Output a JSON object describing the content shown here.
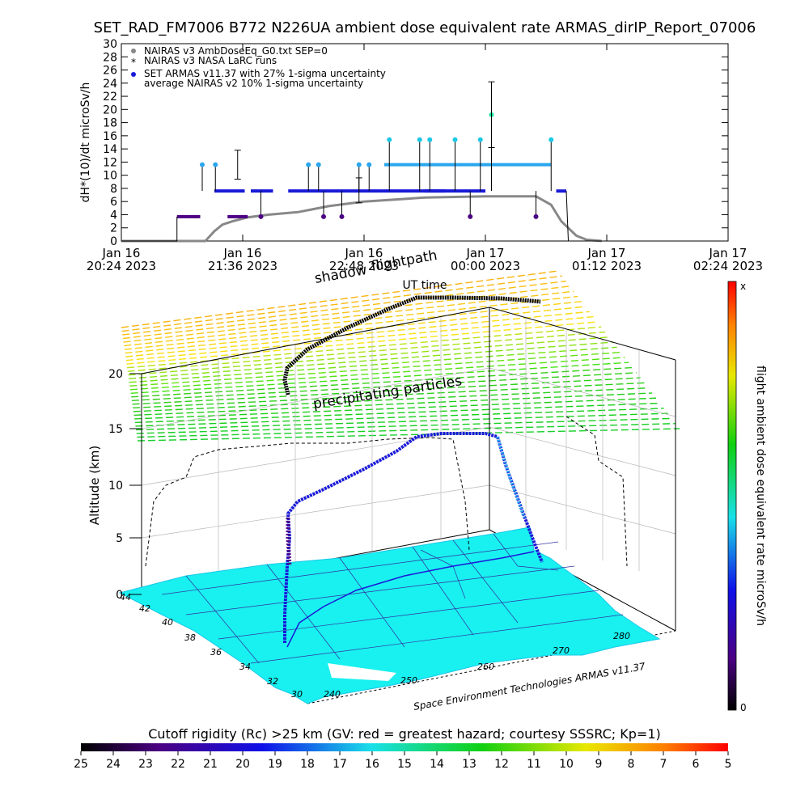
{
  "title": "SET_RAD_FM7006  B772 N226UA ambient dose equivalent rate ARMAS_dirIP_Report_07006",
  "colors": {
    "nairas_v3": "#888888",
    "armas_blue": "#1a1ad8",
    "armas_cyan": "#19c8e6",
    "armas_light": "#2aa6ee",
    "armas_indigo": "#4b0082",
    "map_fill": "#19f0f0",
    "frame": "#000000"
  },
  "chart_data": [
    {
      "type": "line",
      "ylabel": "dH*(10)/dt microSv/h",
      "ylim": [
        0,
        30
      ],
      "yticks": [
        "0",
        "2",
        "4",
        "6",
        "8",
        "10",
        "12",
        "14",
        "16",
        "18",
        "20",
        "22",
        "24",
        "26",
        "28",
        "30"
      ],
      "xticks": [
        {
          "l1": "Jan 16",
          "l2": "20:24 2023"
        },
        {
          "l1": "Jan 16",
          "l2": "21:36 2023"
        },
        {
          "l1": "Jan 16",
          "l2": "22:48 2023"
        },
        {
          "l1": "Jan 17",
          "l2": "00:00 2023"
        },
        {
          "l1": "Jan 17",
          "l2": "01:12 2023"
        },
        {
          "l1": "Jan 17",
          "l2": "02:24 2023"
        }
      ],
      "xlabel": "UT time",
      "legend_position": "top-left",
      "legend": [
        "NAIRAS v3 AmbDoseEq_G0.txt SEP=0",
        "NAIRAS v3 NASA LaRC runs",
        "SET ARMAS v11.37 with 27% 1-sigma uncertainty",
        "average NAIRAS v2 10% 1-sigma uncertainty"
      ],
      "series": [
        {
          "name": "NAIRAS v3 AmbDoseEq_G0.txt SEP=0",
          "x_hours_after_2024": [
            0.0,
            0.55,
            0.83,
            0.92,
            1.0,
            1.1,
            1.25,
            1.45,
            1.75,
            2.05,
            2.4,
            3.0,
            3.6,
            4.0,
            4.1,
            4.25,
            4.35,
            4.5,
            4.6,
            4.75
          ],
          "values": [
            0,
            0,
            0,
            1.5,
            2.5,
            3.0,
            3.6,
            4.0,
            4.4,
            5.3,
            6.0,
            6.6,
            6.8,
            6.8,
            6.8,
            5.5,
            3.0,
            0.8,
            0.2,
            0
          ]
        },
        {
          "name": "SET ARMAS v11.37 with 27% 1-sigma uncertainty",
          "segments": [
            {
              "x": [
                0.55,
                0.78
              ],
              "y": [
                3.7,
                3.7
              ]
            },
            {
              "x": [
                0.92,
                1.22
              ],
              "y": [
                7.6,
                7.6
              ]
            },
            {
              "x": [
                1.05,
                1.25
              ],
              "y": [
                3.7,
                3.7
              ]
            },
            {
              "x": [
                1.28,
                1.5
              ],
              "y": [
                7.6,
                7.6
              ]
            },
            {
              "x": [
                1.65,
                3.2
              ],
              "y": [
                7.6,
                7.6
              ]
            },
            {
              "x": [
                2.6,
                3.7
              ],
              "y": [
                11.6,
                11.6
              ]
            },
            {
              "x": [
                3.0,
                3.6
              ],
              "y": [
                7.6,
                7.6
              ]
            },
            {
              "x": [
                3.7,
                4.25
              ],
              "y": [
                11.6,
                11.6
              ]
            },
            {
              "x": [
                4.3,
                4.4
              ],
              "y": [
                7.6,
                7.6
              ]
            }
          ],
          "spikes": [
            {
              "x": 0.8,
              "y": 11.6
            },
            {
              "x": 0.93,
              "y": 11.6
            },
            {
              "x": 1.38,
              "y": 3.7
            },
            {
              "x": 1.85,
              "y": 11.6
            },
            {
              "x": 1.95,
              "y": 11.6
            },
            {
              "x": 2.0,
              "y": 3.7
            },
            {
              "x": 2.18,
              "y": 3.7
            },
            {
              "x": 2.35,
              "y": 11.6
            },
            {
              "x": 2.45,
              "y": 11.6
            },
            {
              "x": 2.65,
              "y": 15.4
            },
            {
              "x": 2.95,
              "y": 15.4
            },
            {
              "x": 3.05,
              "y": 15.4
            },
            {
              "x": 3.3,
              "y": 15.4
            },
            {
              "x": 3.45,
              "y": 3.7
            },
            {
              "x": 3.55,
              "y": 15.4
            },
            {
              "x": 3.66,
              "y": 19.2
            },
            {
              "x": 4.1,
              "y": 3.7
            },
            {
              "x": 4.25,
              "y": 15.4
            }
          ]
        }
      ],
      "error_bars": [
        {
          "x": 3.66,
          "lo": 14.2,
          "hi": 24.2
        },
        {
          "x": 1.15,
          "lo": 9.4,
          "hi": 13.8
        },
        {
          "x": 2.35,
          "lo": 5.8,
          "hi": 9.6
        }
      ]
    },
    {
      "type": "scatter",
      "ylabel": "Altitude (km)",
      "zticks": [
        "0",
        "5",
        "10",
        "15",
        "20"
      ],
      "lat_ticks": [
        "44",
        "42",
        "40",
        "38",
        "36",
        "34",
        "32",
        "30"
      ],
      "lon_ticks": [
        "240",
        "250",
        "260",
        "270",
        "280"
      ],
      "annotations": {
        "shadow": "shadow",
        "flightpath": "flightpath",
        "precip": "precipitating particles",
        "credit": "Space Environment Technologies ARMAS v11.37"
      }
    }
  ],
  "colorbar_right": {
    "label": "flight ambient dose equivalent rate microSv/h",
    "top": "x",
    "bottom": "0"
  },
  "colorbar_bottom": {
    "label": "Cutoff rigidity (Rc) >25 km (GV: red = greatest hazard; courtesy SSSRC; Kp=1)",
    "ticks": [
      "25",
      "24",
      "23",
      "22",
      "21",
      "20",
      "19",
      "18",
      "17",
      "16",
      "15",
      "14",
      "13",
      "12",
      "11",
      "10",
      "9",
      "8",
      "7",
      "6",
      "5"
    ]
  }
}
